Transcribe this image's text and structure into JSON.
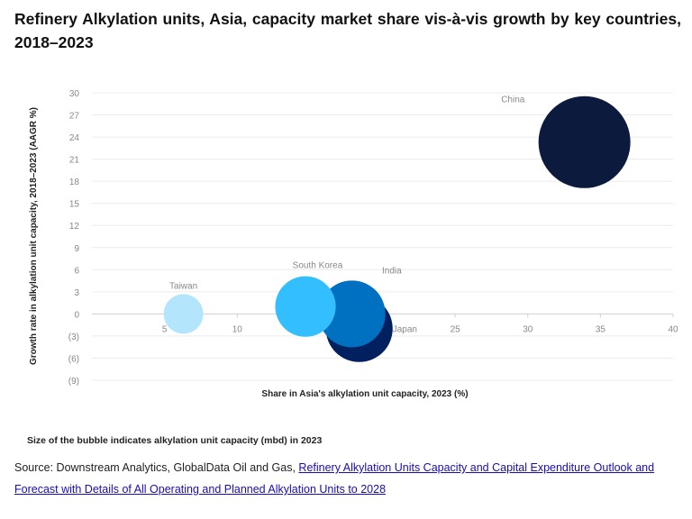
{
  "chart_data": {
    "type": "bubble",
    "title": "Refinery Alkylation units, Asia, capacity market share vis-à-vis growth by key countries, 2018–2023",
    "xlabel": "Share in Asia's alkylation unit capacity, 2023 (%)",
    "ylabel": "Growth rate in alkylation unit capacity, 2018–2023 (AAGR %)",
    "xlim": [
      0,
      40
    ],
    "ylim": [
      -9,
      30
    ],
    "xticks": [
      "5",
      "10",
      "15",
      "20",
      "25",
      "30",
      "35",
      "40"
    ],
    "xtick_values": [
      5,
      10,
      15,
      20,
      25,
      30,
      35,
      40
    ],
    "yticks": [
      "30",
      "27",
      "24",
      "21",
      "18",
      "15",
      "12",
      "9",
      "6",
      "3",
      "0",
      "(3)",
      "(6)",
      "(9)"
    ],
    "ytick_values": [
      30,
      27,
      24,
      21,
      18,
      15,
      12,
      9,
      6,
      3,
      0,
      -3,
      -6,
      -9
    ],
    "grid": true,
    "points": [
      {
        "label": "Taiwan",
        "x": 6.3,
        "y": 0,
        "size": 6.3,
        "color": "#b3e5fc"
      },
      {
        "label": "Japan",
        "x": 18.4,
        "y": -2,
        "size": 17.9,
        "color": "#002060"
      },
      {
        "label": "India",
        "x": 17.9,
        "y": 0,
        "size": 17.9,
        "color": "#0070c0"
      },
      {
        "label": "South Korea",
        "x": 14.7,
        "y": 1,
        "size": 14.7,
        "color": "#33bfff"
      },
      {
        "label": "China",
        "x": 33.9,
        "y": 23.3,
        "size": 33.9,
        "color": "#0c1a3e"
      }
    ]
  },
  "note": "Size of the bubble indicates alkylation unit capacity (mbd) in 2023",
  "source": {
    "prefix": "Source: Downstream Analytics, GlobalData Oil and Gas, ",
    "link": "Refinery Alkylation Units Capacity and Capital Expenditure Outlook and Forecast with Details of All Operating and Planned Alkylation Units to 2028"
  }
}
